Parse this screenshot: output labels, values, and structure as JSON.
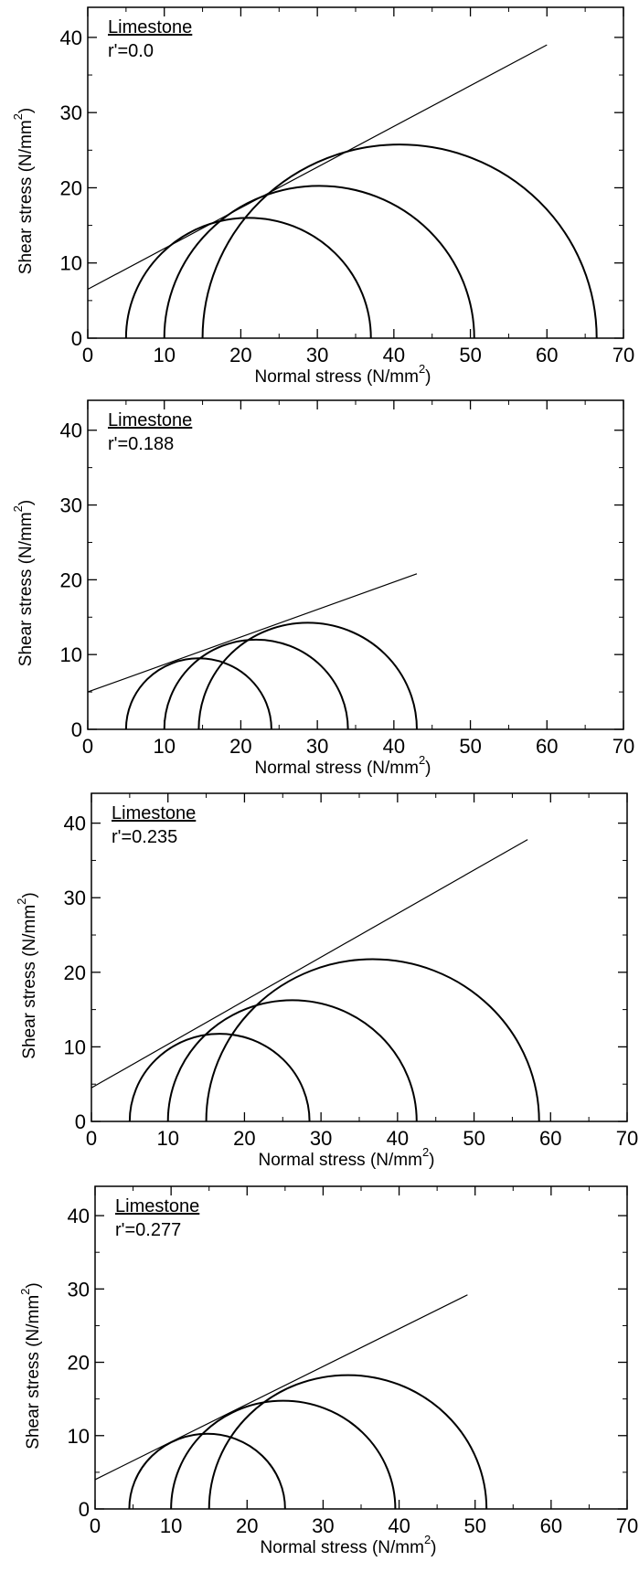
{
  "chart_data": [
    {
      "type": "line",
      "title": "Limestone",
      "subtitle": "r'=0.0",
      "xlabel": "Normal stress (N/mm",
      "xlabel_sup": "2",
      "xlabel_end": ")",
      "ylabel": "Shear stress (N/mm",
      "ylabel_sup": "2",
      "ylabel_end": ")",
      "xlim": [
        0,
        70
      ],
      "ylim": [
        0,
        44
      ],
      "xticks": [
        "0",
        "10",
        "20",
        "30",
        "40",
        "50",
        "60",
        "70"
      ],
      "yticks": [
        "0",
        "10",
        "20",
        "30",
        "40"
      ],
      "mohr_circles": [
        {
          "sigma3": 5,
          "sigma1": 37
        },
        {
          "sigma3": 10,
          "sigma1": 50.5
        },
        {
          "sigma3": 15,
          "sigma1": 66.5
        }
      ],
      "envelope": {
        "x": [
          0,
          60
        ],
        "y": [
          6.5,
          39
        ]
      }
    },
    {
      "type": "line",
      "title": "Limestone",
      "subtitle": "r'=0.188",
      "xlabel": "Normal stress (N/mm",
      "xlabel_sup": "2",
      "xlabel_end": ")",
      "ylabel": "Shear stress (N/mm",
      "ylabel_sup": "2",
      "ylabel_end": ")",
      "xlim": [
        0,
        70
      ],
      "ylim": [
        0,
        44
      ],
      "xticks": [
        "0",
        "10",
        "20",
        "30",
        "40",
        "50",
        "60",
        "70"
      ],
      "yticks": [
        "0",
        "10",
        "20",
        "30",
        "40"
      ],
      "mohr_circles": [
        {
          "sigma3": 5,
          "sigma1": 24
        },
        {
          "sigma3": 10,
          "sigma1": 34
        },
        {
          "sigma3": 14.5,
          "sigma1": 43
        }
      ],
      "envelope": {
        "x": [
          0,
          43
        ],
        "y": [
          5,
          20.8
        ]
      }
    },
    {
      "type": "line",
      "title": "Limestone",
      "subtitle": "r'=0.235",
      "xlabel": "Normal stress (N/mm",
      "xlabel_sup": "2",
      "xlabel_end": ")",
      "ylabel": "Shear stress (N/mm",
      "ylabel_sup": "2",
      "ylabel_end": ")",
      "xlim": [
        0,
        70
      ],
      "ylim": [
        0,
        44
      ],
      "xticks": [
        "0",
        "10",
        "20",
        "30",
        "40",
        "50",
        "60",
        "70"
      ],
      "yticks": [
        "0",
        "10",
        "20",
        "30",
        "40"
      ],
      "mohr_circles": [
        {
          "sigma3": 5,
          "sigma1": 28.5
        },
        {
          "sigma3": 10,
          "sigma1": 42.5
        },
        {
          "sigma3": 15,
          "sigma1": 58.5
        }
      ],
      "envelope": {
        "x": [
          0,
          57
        ],
        "y": [
          4.5,
          37.8
        ]
      }
    },
    {
      "type": "line",
      "title": "Limestone",
      "subtitle": "r'=0.277",
      "xlabel": "Normal stress (N/mm",
      "xlabel_sup": "2",
      "xlabel_end": ")",
      "ylabel": "Shear stress (N/mm",
      "ylabel_sup": "2",
      "ylabel_end": ")",
      "xlim": [
        0,
        70
      ],
      "ylim": [
        0,
        44
      ],
      "xticks": [
        "0",
        "10",
        "20",
        "30",
        "40",
        "50",
        "60",
        "70"
      ],
      "yticks": [
        "0",
        "10",
        "20",
        "30",
        "40"
      ],
      "mohr_circles": [
        {
          "sigma3": 4.5,
          "sigma1": 25
        },
        {
          "sigma3": 10,
          "sigma1": 39.5
        },
        {
          "sigma3": 15,
          "sigma1": 51.5
        }
      ],
      "envelope": {
        "x": [
          0,
          49
        ],
        "y": [
          4,
          29.2
        ]
      }
    }
  ]
}
